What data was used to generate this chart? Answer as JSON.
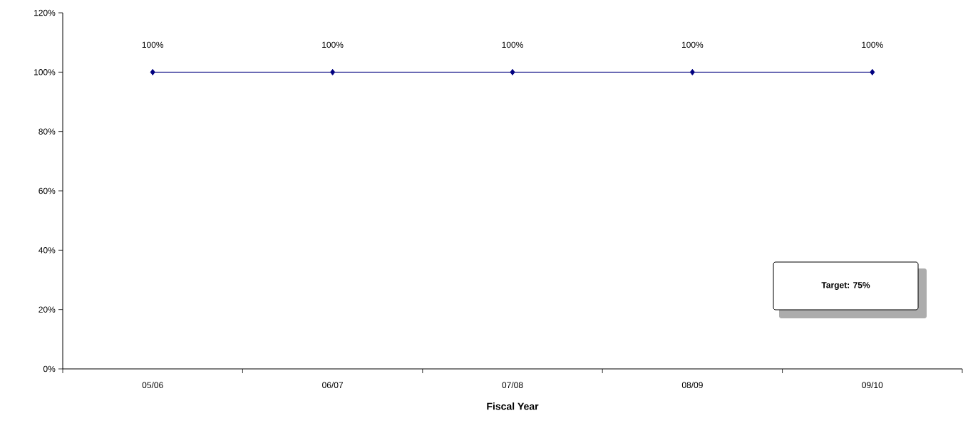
{
  "chart_data": {
    "type": "line",
    "xlabel": "Fiscal Year",
    "categories": [
      "05/06",
      "06/07",
      "07/08",
      "08/09",
      "09/10"
    ],
    "series": [
      {
        "color": "#000080",
        "values": [
          100,
          100,
          100,
          100,
          100
        ],
        "value_labels": [
          "100%",
          "100%",
          "100%",
          "100%",
          "100%"
        ]
      }
    ],
    "ylim": [
      0,
      120
    ],
    "yticks": [
      {
        "value": 0,
        "label": "0%"
      },
      {
        "value": 20,
        "label": "20%"
      },
      {
        "value": 40,
        "label": "40%"
      },
      {
        "value": 60,
        "label": "60%"
      },
      {
        "value": 80,
        "label": "80%"
      },
      {
        "value": 100,
        "label": "100%"
      },
      {
        "value": 120,
        "label": "120%"
      }
    ],
    "marker": "diamond",
    "line_style": "solid",
    "grid": false,
    "annotations": [
      "Target: 75%"
    ]
  }
}
